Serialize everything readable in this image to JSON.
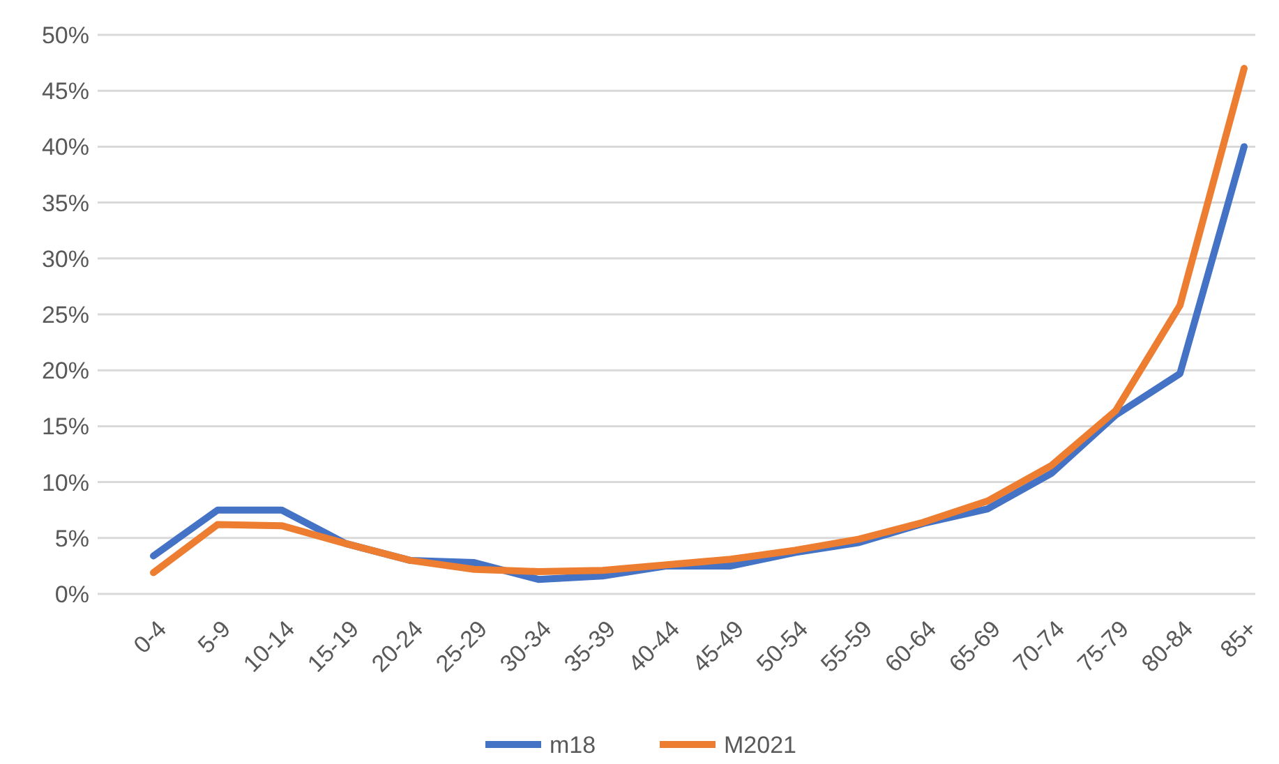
{
  "chart_data": {
    "type": "line",
    "categories": [
      "0-4",
      "5-9",
      "10-14",
      "15-19",
      "20-24",
      "25-29",
      "30-34",
      "35-39",
      "40-44",
      "45-49",
      "50-54",
      "55-59",
      "60-64",
      "65-69",
      "70-74",
      "75-79",
      "80-84",
      "85+"
    ],
    "series": [
      {
        "name": "m18",
        "color": "#4472c4",
        "values": [
          3.4,
          7.5,
          7.5,
          4.5,
          3.0,
          2.8,
          1.3,
          1.6,
          2.5,
          2.5,
          3.7,
          4.6,
          6.3,
          7.6,
          10.8,
          16,
          19.7,
          40
        ]
      },
      {
        "name": "M2021",
        "color": "#ed7d31",
        "values": [
          1.9,
          6.2,
          6.1,
          4.5,
          3.0,
          2.2,
          2.0,
          2.1,
          2.6,
          3.1,
          3.9,
          4.9,
          6.4,
          8.3,
          11.5,
          16.4,
          25.8,
          47
        ]
      }
    ],
    "ylim": [
      0,
      50
    ],
    "yticks": [
      {
        "value": 0,
        "label": "0%"
      },
      {
        "value": 5,
        "label": "5%"
      },
      {
        "value": 10,
        "label": "10%"
      },
      {
        "value": 15,
        "label": "15%"
      },
      {
        "value": 20,
        "label": "20%"
      },
      {
        "value": 25,
        "label": "25%"
      },
      {
        "value": 30,
        "label": "30%"
      },
      {
        "value": 35,
        "label": "35%"
      },
      {
        "value": 40,
        "label": "40%"
      },
      {
        "value": 45,
        "label": "45%"
      },
      {
        "value": 50,
        "label": "50%"
      }
    ],
    "grid": "y",
    "legend": "bottom",
    "marker": "none",
    "line_style": "solid"
  }
}
